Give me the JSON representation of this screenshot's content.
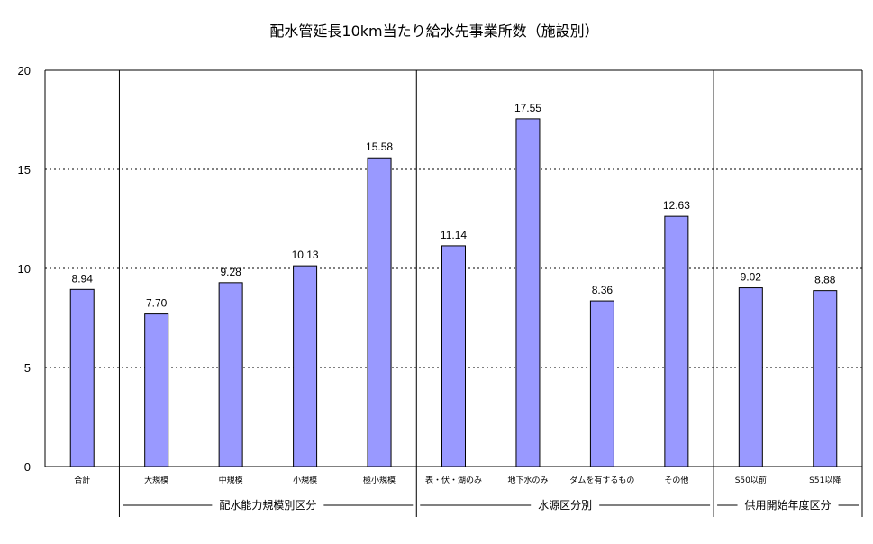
{
  "chart_data": {
    "type": "bar",
    "title": "配水管延長10km当たり給水先事業所数（施設別）",
    "xlabel": "",
    "ylabel": "",
    "ylim": [
      0,
      20
    ],
    "yticks": [
      0,
      5,
      10,
      15,
      20
    ],
    "grid": "dashed horizontal",
    "categories": [
      "合計",
      "大規模",
      "中規模",
      "小規模",
      "極小規模",
      "表・伏・湖のみ",
      "地下水のみ",
      "ダムを有するもの",
      "その他",
      "S50以前",
      "S51以降"
    ],
    "values": [
      8.94,
      7.7,
      9.28,
      10.13,
      15.58,
      11.14,
      17.55,
      8.36,
      12.63,
      9.02,
      8.88
    ],
    "value_labels": [
      "8.94",
      "7.70",
      "9.28",
      "10.13",
      "15.58",
      "11.14",
      "17.55",
      "8.36",
      "12.63",
      "9.02",
      "8.88"
    ],
    "groups": [
      {
        "label": "配水能力規模別区分",
        "start": 1,
        "end": 4
      },
      {
        "label": "水源区分別",
        "start": 5,
        "end": 8
      },
      {
        "label": "供用開始年度区分",
        "start": 9,
        "end": 10
      }
    ],
    "colors": {
      "bar": "#9999ff",
      "bar_stroke": "#000000",
      "grid": "#000000"
    }
  }
}
